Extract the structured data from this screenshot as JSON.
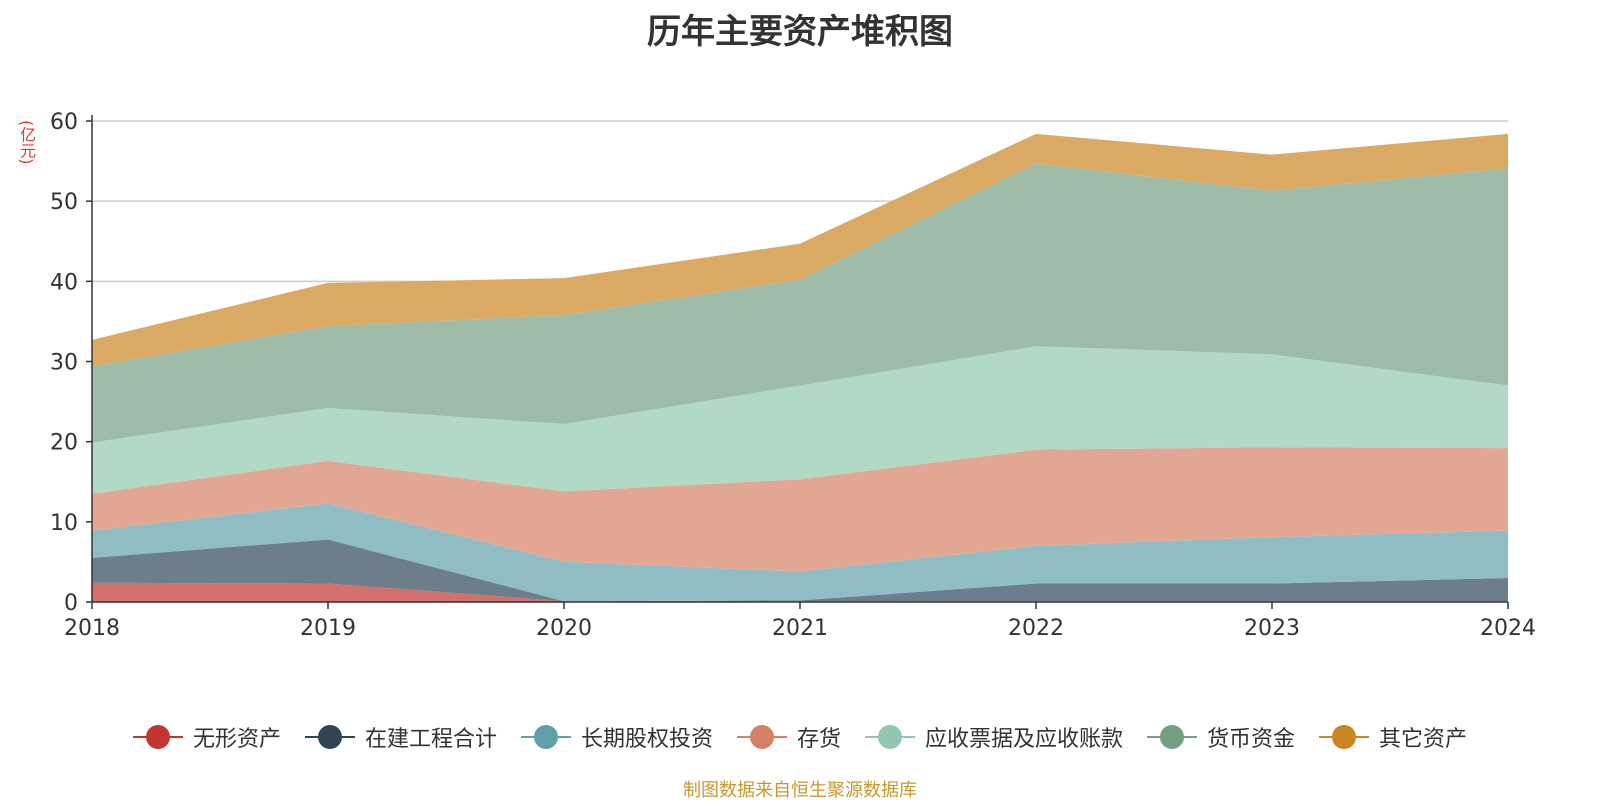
{
  "chart_data": {
    "type": "area",
    "stacked": true,
    "title": "历年主要资产堆积图",
    "ylabel": "(亿元)",
    "xlabel": "",
    "x": [
      "2018",
      "2019",
      "2020",
      "2021",
      "2022",
      "2023",
      "2024"
    ],
    "ylim": [
      0,
      60
    ],
    "yticks": [
      0,
      10,
      20,
      30,
      40,
      50,
      60
    ],
    "grid": true,
    "legend_position": "bottom",
    "series": [
      {
        "name": "无形资产",
        "color": "#c23531",
        "fill": "#d4706c",
        "values": [
          2.4,
          2.3,
          0.1,
          0.1,
          0.1,
          0.1,
          0.1
        ]
      },
      {
        "name": "在建工程合计",
        "color": "#2f4554",
        "fill": "#6d7d89",
        "values": [
          3.1,
          5.5,
          0.0,
          0.1,
          2.2,
          2.2,
          2.9
        ]
      },
      {
        "name": "长期股权投资",
        "color": "#61a0a8",
        "fill": "#90bdc3",
        "values": [
          3.4,
          4.5,
          4.9,
          3.6,
          4.7,
          5.8,
          5.9
        ]
      },
      {
        "name": "存货",
        "color": "#d48265",
        "fill": "#e1a793",
        "values": [
          4.6,
          5.3,
          8.8,
          11.5,
          12.0,
          11.2,
          10.3
        ]
      },
      {
        "name": "应收票据及应收账款",
        "color": "#91c7ae",
        "fill": "#b2d8c6",
        "values": [
          6.4,
          6.6,
          8.4,
          11.7,
          12.9,
          11.6,
          7.8
        ]
      },
      {
        "name": "货币资金",
        "color": "#749f83",
        "fill": "#9ebba8",
        "values": [
          9.5,
          10.2,
          13.6,
          13.2,
          22.8,
          20.4,
          27.1
        ]
      },
      {
        "name": "其它资产",
        "color": "#ca8622",
        "fill": "#daa964",
        "values": [
          3.3,
          5.4,
          4.6,
          4.5,
          3.7,
          4.5,
          4.3
        ]
      }
    ]
  },
  "footer": {
    "source": "制图数据来自恒生聚源数据库"
  }
}
